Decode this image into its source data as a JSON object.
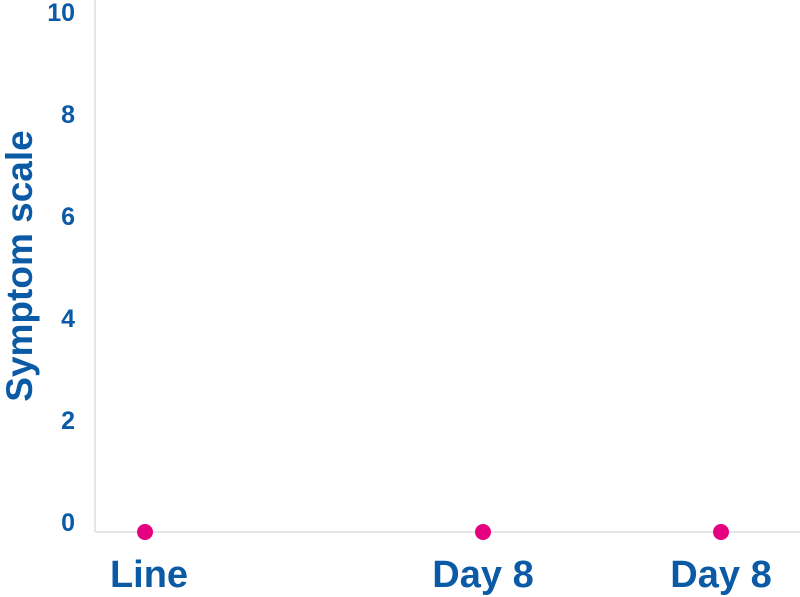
{
  "chart_data": {
    "type": "scatter",
    "ylabel": "Symptom scale",
    "ylim": [
      0,
      10
    ],
    "yticks": [
      0,
      2,
      4,
      6,
      8,
      10
    ],
    "categories": [
      "Line",
      "Day 8",
      "Day 8"
    ],
    "values": [
      0,
      0,
      0
    ],
    "grid": false,
    "colors": {
      "text": "#0b5aa5",
      "axis": "#e3e6ea",
      "points": "#e5007e"
    }
  }
}
